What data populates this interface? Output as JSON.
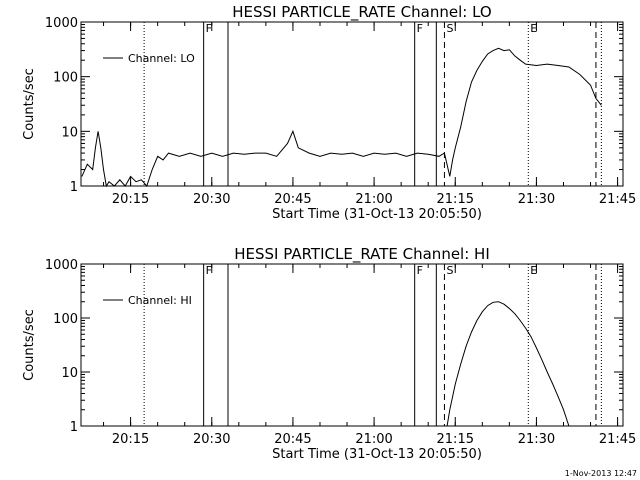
{
  "chart_data": [
    {
      "type": "line",
      "title": "HESSI PARTICLE_RATE Channel: LO",
      "xlabel": "Start Time (31-Oct-13 20:05:50)",
      "ylabel": "Counts/sec",
      "yscale": "log",
      "ylim": [
        1,
        1000
      ],
      "xlim": [
        "20:05:50",
        "21:46:00"
      ],
      "x_ticks": [
        "20:15",
        "20:30",
        "20:45",
        "21:00",
        "21:15",
        "21:30",
        "21:45"
      ],
      "y_ticks": [
        "1",
        "10",
        "100",
        "1000"
      ],
      "legend": "top-left",
      "series": [
        {
          "name": "Channel: LO",
          "x": [
            "20:06:00",
            "20:07:00",
            "20:08:00",
            "20:08:30",
            "20:09:00",
            "20:09:30",
            "20:10:00",
            "20:10:30",
            "20:11:00",
            "20:12:00",
            "20:13:00",
            "20:14:00",
            "20:15:00",
            "20:16:00",
            "20:17:00",
            "20:18:00",
            "20:19:00",
            "20:20:00",
            "20:21:00",
            "20:22:00",
            "20:24:00",
            "20:26:00",
            "20:28:00",
            "20:30:00",
            "20:32:00",
            "20:34:00",
            "20:36:00",
            "20:38:00",
            "20:40:00",
            "20:42:00",
            "20:44:00",
            "20:45:00",
            "20:46:00",
            "20:48:00",
            "20:50:00",
            "20:52:00",
            "20:54:00",
            "20:56:00",
            "20:58:00",
            "21:00:00",
            "21:02:00",
            "21:04:00",
            "21:06:00",
            "21:08:00",
            "21:10:00",
            "21:12:00",
            "21:13:00",
            "21:14:00",
            "21:14:30",
            "21:15:00",
            "21:16:00",
            "21:17:00",
            "21:18:00",
            "21:19:00",
            "21:20:00",
            "21:21:00",
            "21:22:00",
            "21:23:00",
            "21:24:00",
            "21:25:00",
            "21:26:00",
            "21:27:00",
            "21:28:00",
            "21:30:00",
            "21:32:00",
            "21:34:00",
            "21:36:00",
            "21:38:00",
            "21:40:00",
            "21:41:00",
            "21:42:00"
          ],
          "values": [
            1.5,
            2.5,
            2,
            5,
            10,
            5,
            2,
            1,
            1.2,
            1,
            1.3,
            1,
            1.5,
            1.2,
            1.3,
            1,
            2,
            3.5,
            3,
            4,
            3.5,
            4,
            3.5,
            4,
            3.5,
            4,
            3.8,
            4,
            4,
            3.5,
            6,
            10,
            5,
            4,
            3.5,
            4,
            3.8,
            4,
            3.5,
            4,
            3.8,
            4,
            3.5,
            4,
            3.8,
            3.5,
            4,
            1.5,
            3,
            5,
            12,
            35,
            80,
            130,
            190,
            260,
            300,
            330,
            300,
            310,
            240,
            200,
            170,
            160,
            170,
            160,
            150,
            110,
            70,
            40,
            30
          ]
        }
      ],
      "markers": [
        {
          "letter": "F",
          "time": "20:28:30",
          "style": "solid"
        },
        {
          "letter": "",
          "time": "20:33:00",
          "style": "solid"
        },
        {
          "letter": "F",
          "time": "21:07:30",
          "style": "solid"
        },
        {
          "letter": "",
          "time": "21:11:30",
          "style": "solid"
        },
        {
          "letter": "S",
          "time": "21:13:00",
          "style": "dashed"
        },
        {
          "letter": "E",
          "time": "21:28:30",
          "style": "dotted"
        },
        {
          "letter": "",
          "time": "20:17:30",
          "style": "dotted"
        },
        {
          "letter": "",
          "time": "21:41:00",
          "style": "dashed"
        },
        {
          "letter": "",
          "time": "21:42:00",
          "style": "dotted"
        }
      ]
    },
    {
      "type": "line",
      "title": "HESSI PARTICLE_RATE Channel: HI",
      "xlabel": "Start Time (31-Oct-13 20:05:50)",
      "ylabel": "Counts/sec",
      "yscale": "log",
      "ylim": [
        1,
        1000
      ],
      "xlim": [
        "20:05:50",
        "21:46:00"
      ],
      "x_ticks": [
        "20:15",
        "20:30",
        "20:45",
        "21:00",
        "21:15",
        "21:30",
        "21:45"
      ],
      "y_ticks": [
        "1",
        "10",
        "100",
        "1000"
      ],
      "legend": "top-left",
      "series": [
        {
          "name": "Channel: HI",
          "x": [
            "21:13:30",
            "21:14:00",
            "21:15:00",
            "21:16:00",
            "21:17:00",
            "21:18:00",
            "21:19:00",
            "21:20:00",
            "21:21:00",
            "21:22:00",
            "21:23:00",
            "21:24:00",
            "21:25:00",
            "21:26:00",
            "21:27:00",
            "21:28:00",
            "21:29:00",
            "21:30:00",
            "21:31:00",
            "21:32:00",
            "21:33:00",
            "21:34:00",
            "21:35:00",
            "21:36:00"
          ],
          "values": [
            1,
            2,
            6,
            14,
            30,
            55,
            90,
            130,
            170,
            195,
            200,
            180,
            150,
            120,
            90,
            65,
            45,
            28,
            17,
            10,
            6,
            3.5,
            2,
            1
          ]
        }
      ],
      "markers": [
        {
          "letter": "F",
          "time": "20:28:30",
          "style": "solid"
        },
        {
          "letter": "",
          "time": "20:33:00",
          "style": "solid"
        },
        {
          "letter": "F",
          "time": "21:07:30",
          "style": "solid"
        },
        {
          "letter": "",
          "time": "21:11:30",
          "style": "solid"
        },
        {
          "letter": "S",
          "time": "21:13:00",
          "style": "dashed"
        },
        {
          "letter": "E",
          "time": "21:28:30",
          "style": "dotted"
        },
        {
          "letter": "",
          "time": "20:17:30",
          "style": "dotted"
        },
        {
          "letter": "",
          "time": "21:41:00",
          "style": "dashed"
        },
        {
          "letter": "",
          "time": "21:42:00",
          "style": "dotted"
        }
      ]
    }
  ],
  "footer": {
    "stamp": "1-Nov-2013 12:47"
  }
}
